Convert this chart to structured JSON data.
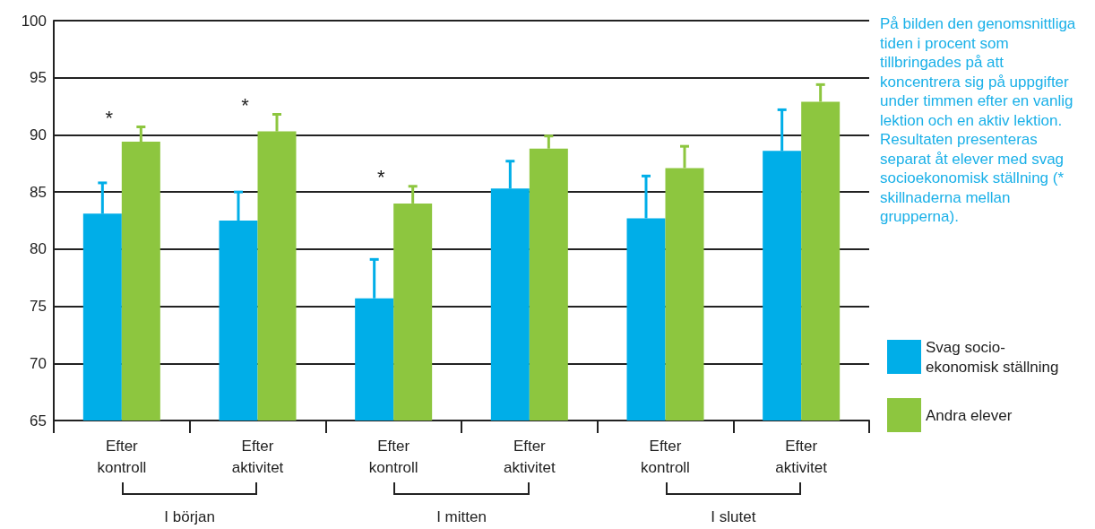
{
  "chart_data": {
    "type": "bar",
    "categories": [
      "Efter\nkontroll",
      "Efter\naktivitet",
      "Efter\nkontroll",
      "Efter\naktivitet",
      "Efter\nkontroll",
      "Efter\naktivitet"
    ],
    "series": [
      {
        "name": "Svag socio-\nekonomisk ställning",
        "color": "#00aee8",
        "values": [
          83.1,
          82.5,
          75.7,
          85.3,
          82.7,
          88.6
        ],
        "errors": [
          [
            83.1,
            85.8
          ],
          [
            82.5,
            85.0
          ],
          [
            75.7,
            79.1
          ],
          [
            85.3,
            87.7
          ],
          [
            82.7,
            86.4
          ],
          [
            88.6,
            92.2
          ]
        ]
      },
      {
        "name": "Andra elever",
        "color": "#8dc63f",
        "values": [
          89.4,
          90.3,
          84.0,
          88.8,
          87.1,
          92.9
        ],
        "errors": [
          [
            89.4,
            90.7
          ],
          [
            90.3,
            91.8
          ],
          [
            84.0,
            85.5
          ],
          [
            88.8,
            89.9
          ],
          [
            87.1,
            89.0
          ],
          [
            92.9,
            94.4
          ]
        ]
      }
    ],
    "ylim": [
      65,
      100
    ],
    "yticks": [
      65,
      70,
      75,
      80,
      85,
      90,
      95,
      100
    ],
    "grid": "y",
    "legend": "right",
    "annotations": [
      "På bilden den genomsnittliga tiden i procent som tillbringades på att koncentrera sig på uppgifter under timmen efter en vanlig lektion och en aktiv lektion. Resultaten presenteras separat åt elever med svag socioekonomisk ställning (* skillnaderna mellan grupperna).",
      "I början",
      "I mitten",
      "I slutet",
      "*",
      "*",
      "*"
    ]
  }
}
